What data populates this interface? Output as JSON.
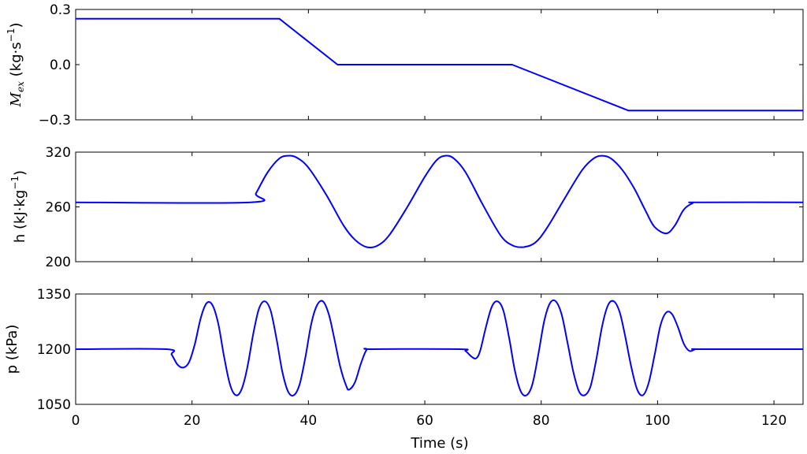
{
  "chart_data": {
    "type": "line",
    "xlabel": "Time (s)",
    "xlim": [
      0,
      125
    ],
    "x_ticks": [
      0,
      20,
      40,
      60,
      80,
      100,
      120
    ],
    "grid": false,
    "panels": [
      {
        "id": "mex",
        "ylabel_main": "M",
        "ylabel_sub": "ex",
        "ylabel_units": " (kg·s",
        "ylabel_exp": "−1",
        "ylabel_close": ")",
        "ylim": [
          -0.3,
          0.3
        ],
        "y_ticks": [
          -0.3,
          0.0,
          0.3
        ],
        "y_tick_labels": [
          "−0.3",
          "0.0",
          "0.3"
        ],
        "series": [
          {
            "x": [
              0,
              35,
              45,
              75,
              95,
              125
            ],
            "y": [
              0.25,
              0.25,
              0.0,
              0.0,
              -0.25,
              -0.25
            ]
          }
        ]
      },
      {
        "id": "h",
        "ylabel_main": "h (kJ·kg",
        "ylabel_exp": "−1",
        "ylabel_close": ")",
        "ylim": [
          200,
          320
        ],
        "y_ticks": [
          200,
          260,
          320
        ],
        "y_tick_labels": [
          "200",
          "260",
          "320"
        ],
        "series": [
          {
            "x": [
              0,
              30,
              31,
              33,
              35,
              36.5,
              38,
              40,
              43,
              46,
              48,
              50,
              52,
              54,
              57,
              60,
              62,
              63.5,
              65,
              67,
              70,
              73,
              75,
              77,
              79,
              81,
              84,
              87,
              89,
              90.5,
              92,
              94,
              96,
              98,
              99.5,
              101.5,
              103,
              104.5,
              106,
              107,
              125
            ],
            "y": [
              265,
              265,
              275,
              298,
              313,
              316,
              314,
              303,
              274,
              240,
              224,
              216,
              218,
              230,
              260,
              293,
              311,
              316,
              313,
              298,
              262,
              229,
              218,
              216,
              221,
              237,
              269,
              300,
              313,
              316,
              313,
              300,
              280,
              255,
              238,
              231,
              240,
              257,
              264,
              265,
              265
            ]
          }
        ]
      },
      {
        "id": "p",
        "ylabel_main": "p (kPa)",
        "ylim": [
          1050,
          1350
        ],
        "y_ticks": [
          1050,
          1200,
          1350
        ],
        "y_tick_labels": [
          "1050",
          "1200",
          "1350"
        ],
        "series": [
          {
            "x": [
              0,
              15.5,
              16.5,
              17.5,
              18.5,
              19.5,
              20.5,
              21.5,
              22.5,
              23.5,
              24.5,
              25.5,
              26.5,
              27.5,
              28.5,
              29.5,
              30.5,
              31.5,
              32.5,
              33.5,
              34.5,
              35.5,
              36.5,
              37.5,
              38.5,
              39.5,
              40.5,
              41.5,
              42.5,
              43.5,
              44.5,
              45.5,
              46.5,
              47,
              48,
              49,
              50,
              51,
              66,
              67,
              68,
              68.8,
              69.5,
              70.5,
              71.5,
              72.5,
              73.5,
              74.5,
              75.5,
              76.5,
              77.5,
              78.5,
              79.5,
              80.5,
              81.5,
              82.5,
              83.5,
              84.5,
              85.5,
              86.5,
              87.5,
              88.5,
              89.5,
              90.5,
              91.5,
              92.5,
              93.5,
              94.5,
              95.5,
              96.5,
              97.5,
              98.5,
              99.5,
              100.5,
              101.5,
              102.5,
              103.5,
              104.5,
              105.5,
              106.5,
              107.5,
              125
            ],
            "y": [
              1200,
              1200,
              1185,
              1158,
              1150,
              1165,
              1215,
              1285,
              1325,
              1320,
              1270,
              1180,
              1105,
              1075,
              1090,
              1150,
              1240,
              1310,
              1330,
              1305,
              1230,
              1140,
              1085,
              1075,
              1105,
              1180,
              1270,
              1320,
              1330,
              1295,
              1225,
              1150,
              1100,
              1090,
              1110,
              1160,
              1198,
              1200,
              1200,
              1195,
              1180,
              1175,
              1195,
              1260,
              1315,
              1330,
              1305,
              1230,
              1140,
              1085,
              1075,
              1105,
              1185,
              1275,
              1325,
              1330,
              1295,
              1220,
              1140,
              1085,
              1075,
              1100,
              1175,
              1265,
              1320,
              1330,
              1300,
              1230,
              1150,
              1090,
              1075,
              1110,
              1185,
              1265,
              1300,
              1295,
              1260,
              1215,
              1195,
              1200,
              1200,
              1200
            ]
          }
        ]
      }
    ]
  }
}
